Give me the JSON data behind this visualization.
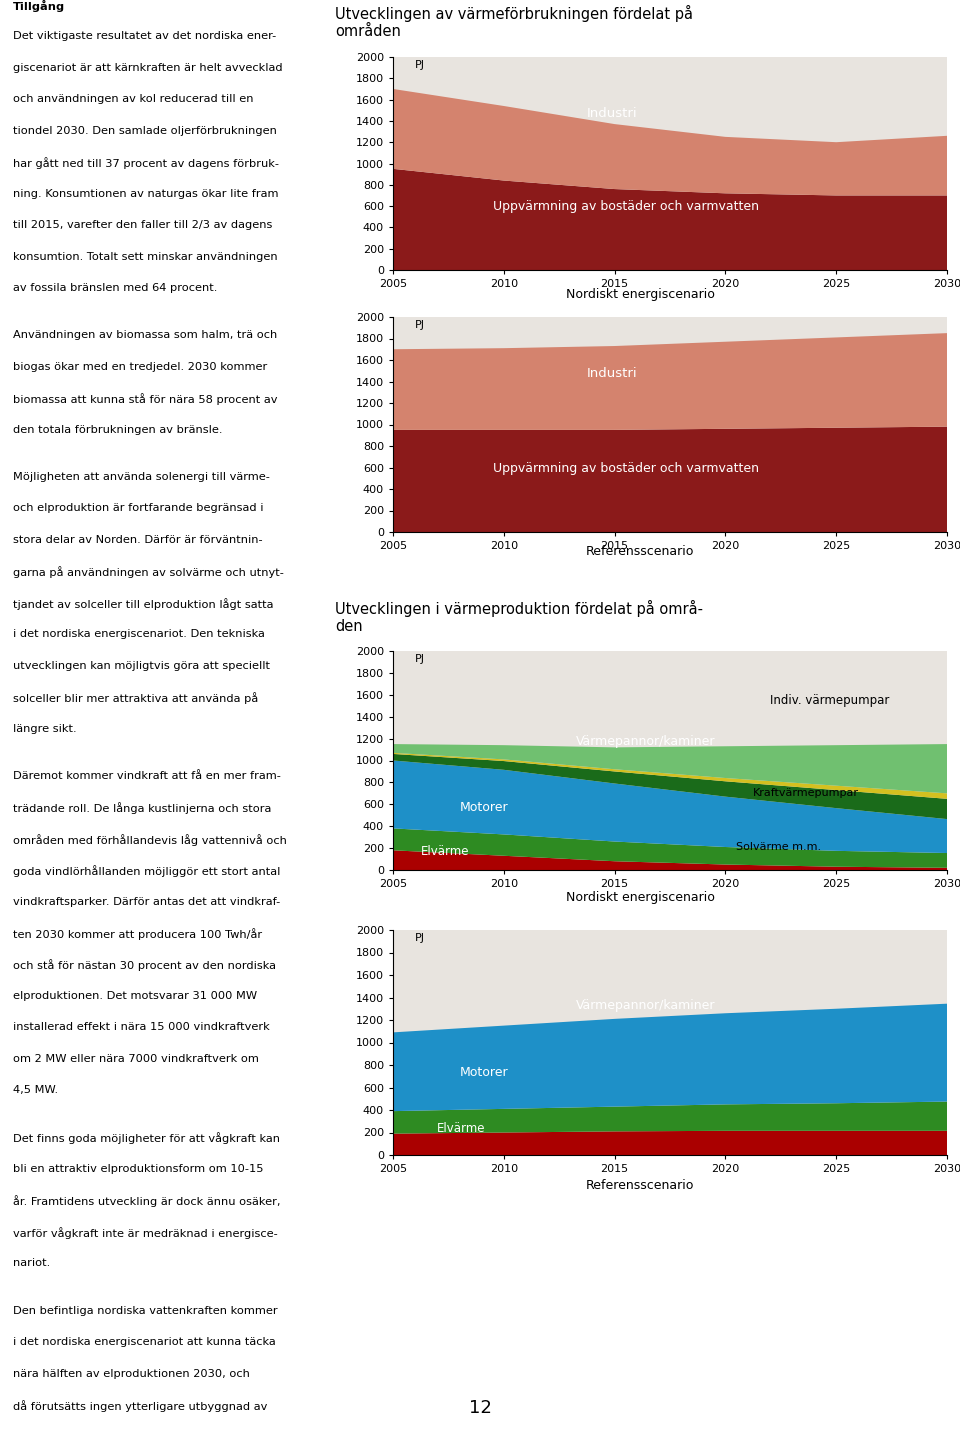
{
  "chart1_title": "Utvecklingen av värmeförbrukningen fördelat på\nområden",
  "chart1_subtitle": "Nordiskt energiscenario",
  "chart2_subtitle": "Referensscenario",
  "chart3_title": "Utvecklingen i värmeproduktion fördelat på områ-\nden",
  "chart3_subtitle": "Nordiskt energiscenario",
  "chart4_subtitle": "Referensscenario",
  "years": [
    2005,
    2010,
    2015,
    2020,
    2025,
    2030
  ],
  "c1_uppvarmning": [
    950,
    840,
    760,
    720,
    700,
    700
  ],
  "c1_industri": [
    750,
    700,
    610,
    530,
    500,
    560
  ],
  "c2_uppvarmning": [
    950,
    950,
    950,
    960,
    970,
    980
  ],
  "c2_industri": [
    750,
    760,
    780,
    810,
    840,
    870
  ],
  "c3_elvarme": [
    180,
    130,
    80,
    50,
    30,
    20
  ],
  "c3_motorer": [
    200,
    195,
    180,
    160,
    145,
    135
  ],
  "c3_varmepannor": [
    620,
    590,
    530,
    460,
    390,
    310
  ],
  "c3_kraftvarmepumpar": [
    60,
    80,
    110,
    140,
    165,
    185
  ],
  "c3_solvarme": [
    10,
    15,
    20,
    30,
    40,
    50
  ],
  "c3_indiv_varmepumpar": [
    80,
    130,
    200,
    290,
    370,
    450
  ],
  "c4_elvarme": [
    190,
    200,
    210,
    215,
    215,
    215
  ],
  "c4_motorer": [
    200,
    210,
    220,
    235,
    245,
    260
  ],
  "c4_varmepannor": [
    700,
    740,
    780,
    810,
    840,
    870
  ],
  "color_uppvarmning": "#8B1A1A",
  "color_industri": "#D4836E",
  "color_bg": "#E8E4DF",
  "color_elvarme": "#AA0000",
  "color_motorer": "#2E8B22",
  "color_varmepannor": "#1E90C8",
  "color_kraftvarmepumpar": "#1A6B1A",
  "color_solvarme": "#D4C020",
  "color_indiv_varmepumpar": "#70C070",
  "ylabel": "PJ",
  "yticks": [
    0,
    200,
    400,
    600,
    800,
    1000,
    1200,
    1400,
    1600,
    1800,
    2000
  ],
  "text_left_col": "Tillgång\nDet viktigaste resultatet av det nordiska ener-\ngiscenariot är att kärnkraften är helt avvecklad\noch användningen av kol reducerad till en\ntiondel 2030. Den samlade oljerförbrukningen\nhar gått ned till 37 procent av dagens förbruk-\nning. Konsumtionen av naturgas ökar lite fram\ntill 2015, varefter den faller till 2/3 av dagens\nkonsumtion. Totalt sett minskar användningen\nav fossila bränslen med 64 procent.\n\nAnvändningen av biomassa som halm, trä och\nbiogas ökar med en tredjedel. 2030 kommer\nbiomassa att kunna stå för nära 58 procent av\nden totala förbrukningen av bränsle.\n\nMöjligheten att använda solenergi till värme-\noch elproduktion är fortfarande begränsad i\nstora delar av Norden. Därför är förväntnin-\ngarna på användningen av solvärme och utnyt-\ntjandet av solceller till elproduktion lågt satta\ni det nordiska energiscenariot. Den tekniska\nutvecklingen kan möjligtvis göra att speciellt\nsolceller blir mer attraktiva att använda på\nlängre sikt.\n\nDäremot kommer vindkraft att få en mer fram-\nträdande roll. De långa kustlinjerna och stora\nområden med förhållandevis låg vattennivå och\ngoda vindlörhållanden möjliggör ett stort antal\nvindkraftsparker. Därför antas det att vindkraf-\nten 2030 kommer att producera 100 Twh/år\noch stå för nästan 30 procent av den nordiska\nelproduktionen. Det motsvarar 31 000 MW\ninstallerad effekt i nära 15 000 vindkraftverk\nom 2 MW eller nära 7000 vindkraftverk om\n4,5 MW.\n\nDet finns goda möjligheter för att vågkraft kan\nbli en attraktiv elproduktionsform om 10-15\når. Framtidens utveckling är dock ännu osäker,\nvarför vågkraft inte är medräknad i energisce-\nnariot.\n\nDen befintliga nordiska vattenkraften kommer\ni det nordiska energiscenariot att kunna täcka\nnära hälften av elproduktionen 2030, och\ndå förutsätts ingen ytterligare utbyggnad av\nvattenkraften. För att ta hänsyn till variationer\ni vattentillförseln antas det i beräkningen att"
}
